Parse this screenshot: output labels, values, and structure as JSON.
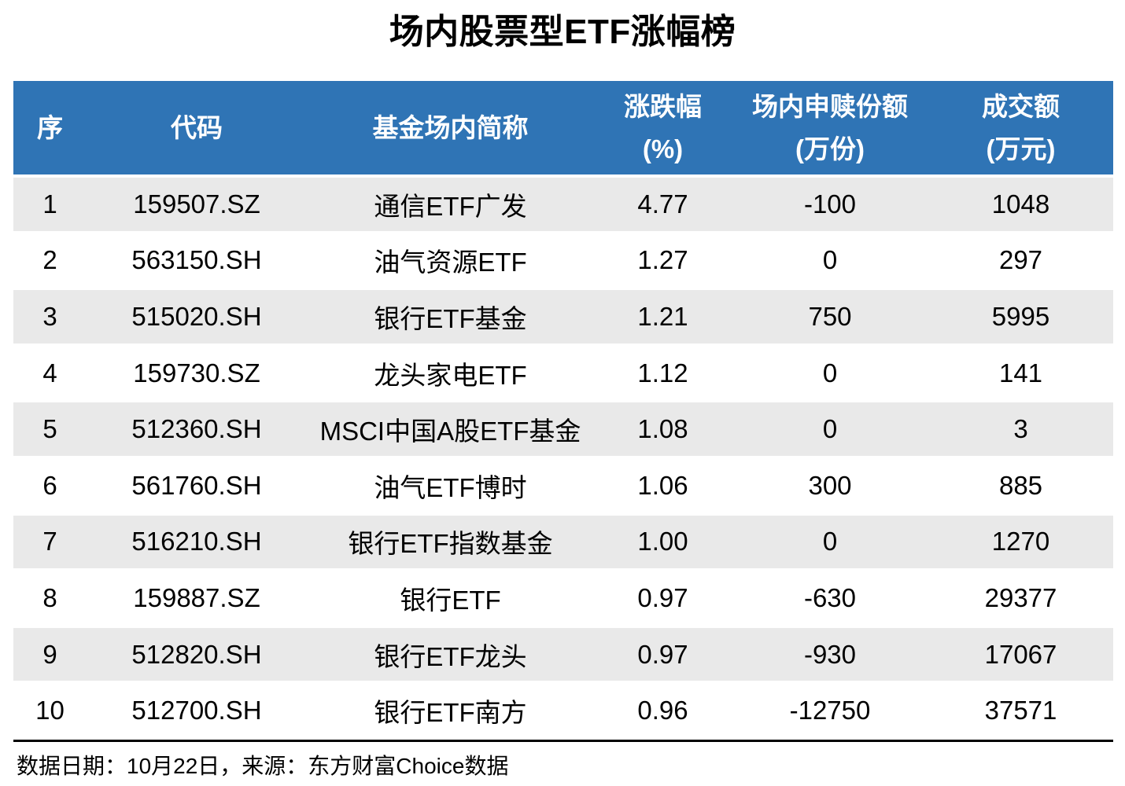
{
  "title": "场内股票型ETF涨幅榜",
  "colors": {
    "header_bg": "#2F74B5",
    "header_text": "#FFFFFF",
    "row_alt_bg": "#E9E9E9",
    "body_text": "#000000"
  },
  "table": {
    "headers": [
      {
        "label": "序",
        "sub": ""
      },
      {
        "label": "代码",
        "sub": ""
      },
      {
        "label": "基金场内简称",
        "sub": ""
      },
      {
        "label": "涨跌幅",
        "sub": "(%)"
      },
      {
        "label": "场内申赎份额",
        "sub": "(万份)"
      },
      {
        "label": "成交额",
        "sub": "(万元)"
      }
    ],
    "rows": [
      {
        "index": "1",
        "code": "159507.SZ",
        "name": "通信ETF广发",
        "change": "4.77",
        "shares": "-100",
        "turnover": "1048"
      },
      {
        "index": "2",
        "code": "563150.SH",
        "name": "油气资源ETF",
        "change": "1.27",
        "shares": "0",
        "turnover": "297"
      },
      {
        "index": "3",
        "code": "515020.SH",
        "name": "银行ETF基金",
        "change": "1.21",
        "shares": "750",
        "turnover": "5995"
      },
      {
        "index": "4",
        "code": "159730.SZ",
        "name": "龙头家电ETF",
        "change": "1.12",
        "shares": "0",
        "turnover": "141"
      },
      {
        "index": "5",
        "code": "512360.SH",
        "name": "MSCI中国A股ETF基金",
        "change": "1.08",
        "shares": "0",
        "turnover": "3"
      },
      {
        "index": "6",
        "code": "561760.SH",
        "name": "油气ETF博时",
        "change": "1.06",
        "shares": "300",
        "turnover": "885"
      },
      {
        "index": "7",
        "code": "516210.SH",
        "name": "银行ETF指数基金",
        "change": "1.00",
        "shares": "0",
        "turnover": "1270"
      },
      {
        "index": "8",
        "code": "159887.SZ",
        "name": "银行ETF",
        "change": "0.97",
        "shares": "-630",
        "turnover": "29377"
      },
      {
        "index": "9",
        "code": "512820.SH",
        "name": "银行ETF龙头",
        "change": "0.97",
        "shares": "-930",
        "turnover": "17067"
      },
      {
        "index": "10",
        "code": "512700.SH",
        "name": "银行ETF南方",
        "change": "0.96",
        "shares": "-12750",
        "turnover": "37571"
      }
    ]
  },
  "footer": {
    "text": "数据日期：10月22日，来源：东方财富Choice数据"
  },
  "chart_data": {
    "type": "table",
    "title": "场内股票型ETF涨幅榜",
    "columns": [
      "序",
      "代码",
      "基金场内简称",
      "涨跌幅(%)",
      "场内申赎份额(万份)",
      "成交额(万元)"
    ],
    "rows": [
      [
        1,
        "159507.SZ",
        "通信ETF广发",
        4.77,
        -100,
        1048
      ],
      [
        2,
        "563150.SH",
        "油气资源ETF",
        1.27,
        0,
        297
      ],
      [
        3,
        "515020.SH",
        "银行ETF基金",
        1.21,
        750,
        5995
      ],
      [
        4,
        "159730.SZ",
        "龙头家电ETF",
        1.12,
        0,
        141
      ],
      [
        5,
        "512360.SH",
        "MSCI中国A股ETF基金",
        1.08,
        0,
        3
      ],
      [
        6,
        "561760.SH",
        "油气ETF博时",
        1.06,
        300,
        885
      ],
      [
        7,
        "516210.SH",
        "银行ETF指数基金",
        1.0,
        0,
        1270
      ],
      [
        8,
        "159887.SZ",
        "银行ETF",
        0.97,
        -630,
        29377
      ],
      [
        9,
        "512820.SH",
        "银行ETF龙头",
        0.97,
        -930,
        17067
      ],
      [
        10,
        "512700.SH",
        "银行ETF南方",
        0.96,
        -12750,
        37571
      ]
    ],
    "annotations": [
      "数据日期：10月22日，来源：东方财富Choice数据"
    ],
    "layout": {
      "header_style": "blue-banded",
      "row_striping": "odd-gray",
      "grid": "off"
    }
  }
}
